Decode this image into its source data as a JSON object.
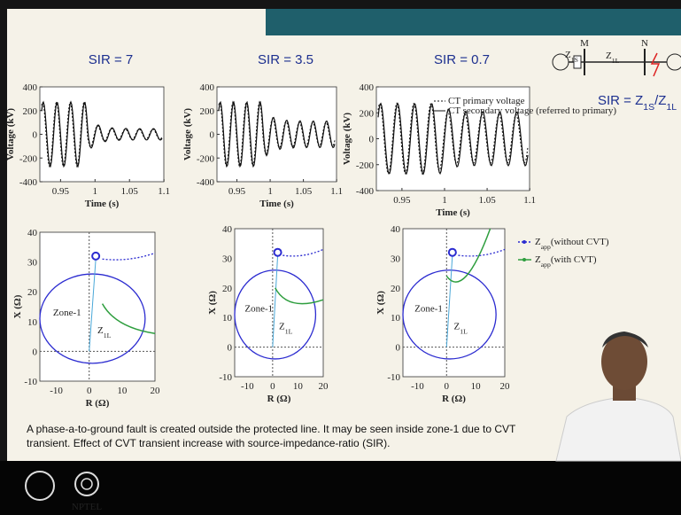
{
  "slide": {
    "voltage_plots": [
      {
        "title": "SIR = 7",
        "y_label": "Voltage (kV)",
        "x_label": "Time (s)",
        "yticks": [
          400,
          200,
          0,
          -200,
          -400
        ],
        "xticks": [
          0.95,
          1,
          1.05,
          1.1
        ]
      },
      {
        "title": "SIR = 3.5",
        "y_label": "Voltage (kV)",
        "x_label": "Time (s)",
        "yticks": [
          400,
          200,
          0,
          -200,
          -400
        ],
        "xticks": [
          0.95,
          1,
          1.05,
          1.1
        ]
      },
      {
        "title": "SIR = 0.7",
        "y_label": "Voltage (kV)",
        "x_label": "Time (s)",
        "yticks": [
          400,
          200,
          0,
          -200,
          -400
        ],
        "xticks": [
          0.95,
          1,
          1.05,
          1.1
        ]
      }
    ],
    "voltage_legend": [
      "CT primary voltage",
      "CT secondary voltage (referred to primary)"
    ],
    "impedance_plots": [
      {
        "y_label": "X (Ω)",
        "x_label": "R (Ω)",
        "yticks": [
          40,
          30,
          20,
          10,
          0,
          -10
        ],
        "xticks": [
          -10,
          0,
          10,
          20
        ],
        "zone_label": "Zone-1",
        "z_label": [
          {
            "t": "Z"
          },
          {
            "sub": "1L"
          }
        ]
      },
      {
        "y_label": "X (Ω)",
        "x_label": "R (Ω)",
        "yticks": [
          40,
          30,
          20,
          10,
          0,
          -10
        ],
        "xticks": [
          -10,
          0,
          10,
          20
        ],
        "zone_label": "Zone-1",
        "z_label": [
          {
            "t": "Z"
          },
          {
            "sub": "1L"
          }
        ]
      },
      {
        "y_label": "X (Ω)",
        "x_label": "R (Ω)",
        "yticks": [
          40,
          30,
          20,
          10,
          0,
          -10
        ],
        "xticks": [
          -10,
          0,
          10,
          20
        ],
        "zone_label": "Zone-1",
        "z_label": [
          {
            "t": "Z"
          },
          {
            "sub": "1L"
          }
        ]
      }
    ],
    "impedance_legend": [
      [
        {
          "t": "Z"
        },
        {
          "sub": "app"
        },
        {
          "t": "(without CVT)"
        }
      ],
      [
        {
          "t": "Z"
        },
        {
          "sub": "app"
        },
        {
          "t": "(with CVT)"
        }
      ]
    ],
    "diagram": {
      "bus_m": "M",
      "bus_n": "N",
      "z_source": [
        {
          "t": "Z"
        },
        {
          "sub": "1S"
        }
      ],
      "z_line": [
        {
          "t": "Z"
        },
        {
          "sub": "1L"
        }
      ]
    },
    "sir_formula": [
      {
        "t": "SIR = Z"
      },
      {
        "sub": "1S"
      },
      {
        "t": "/Z"
      },
      {
        "sub": "1L"
      }
    ],
    "caption": [
      "A phase-a-to-ground fault is created outside the protected line. It may be seen inside zone-1 due to CVT",
      "transient. Effect of CVT transient increase with source-impedance-ratio (SIR)."
    ],
    "logo_text": "NPTEL"
  }
}
